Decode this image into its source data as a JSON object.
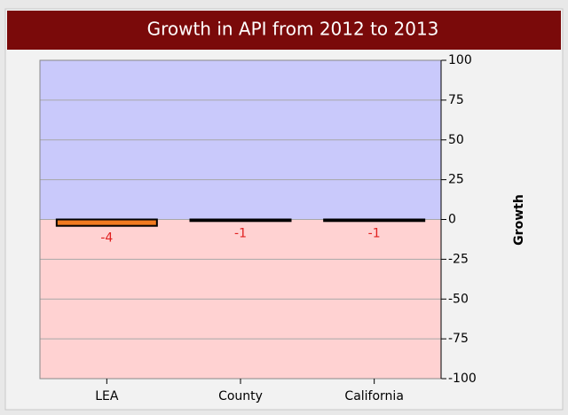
{
  "chart_data": {
    "type": "bar",
    "title": "Growth in API from 2012 to 2013",
    "categories": [
      "LEA",
      "County",
      "California"
    ],
    "values": [
      -4,
      -1,
      -1
    ],
    "color": "#f07a20",
    "y_label": "Growth",
    "ylim": [
      -100,
      100
    ],
    "yticks": [
      100,
      75,
      50,
      25,
      0,
      -25,
      -50,
      -75,
      -100
    ],
    "grid": true
  }
}
